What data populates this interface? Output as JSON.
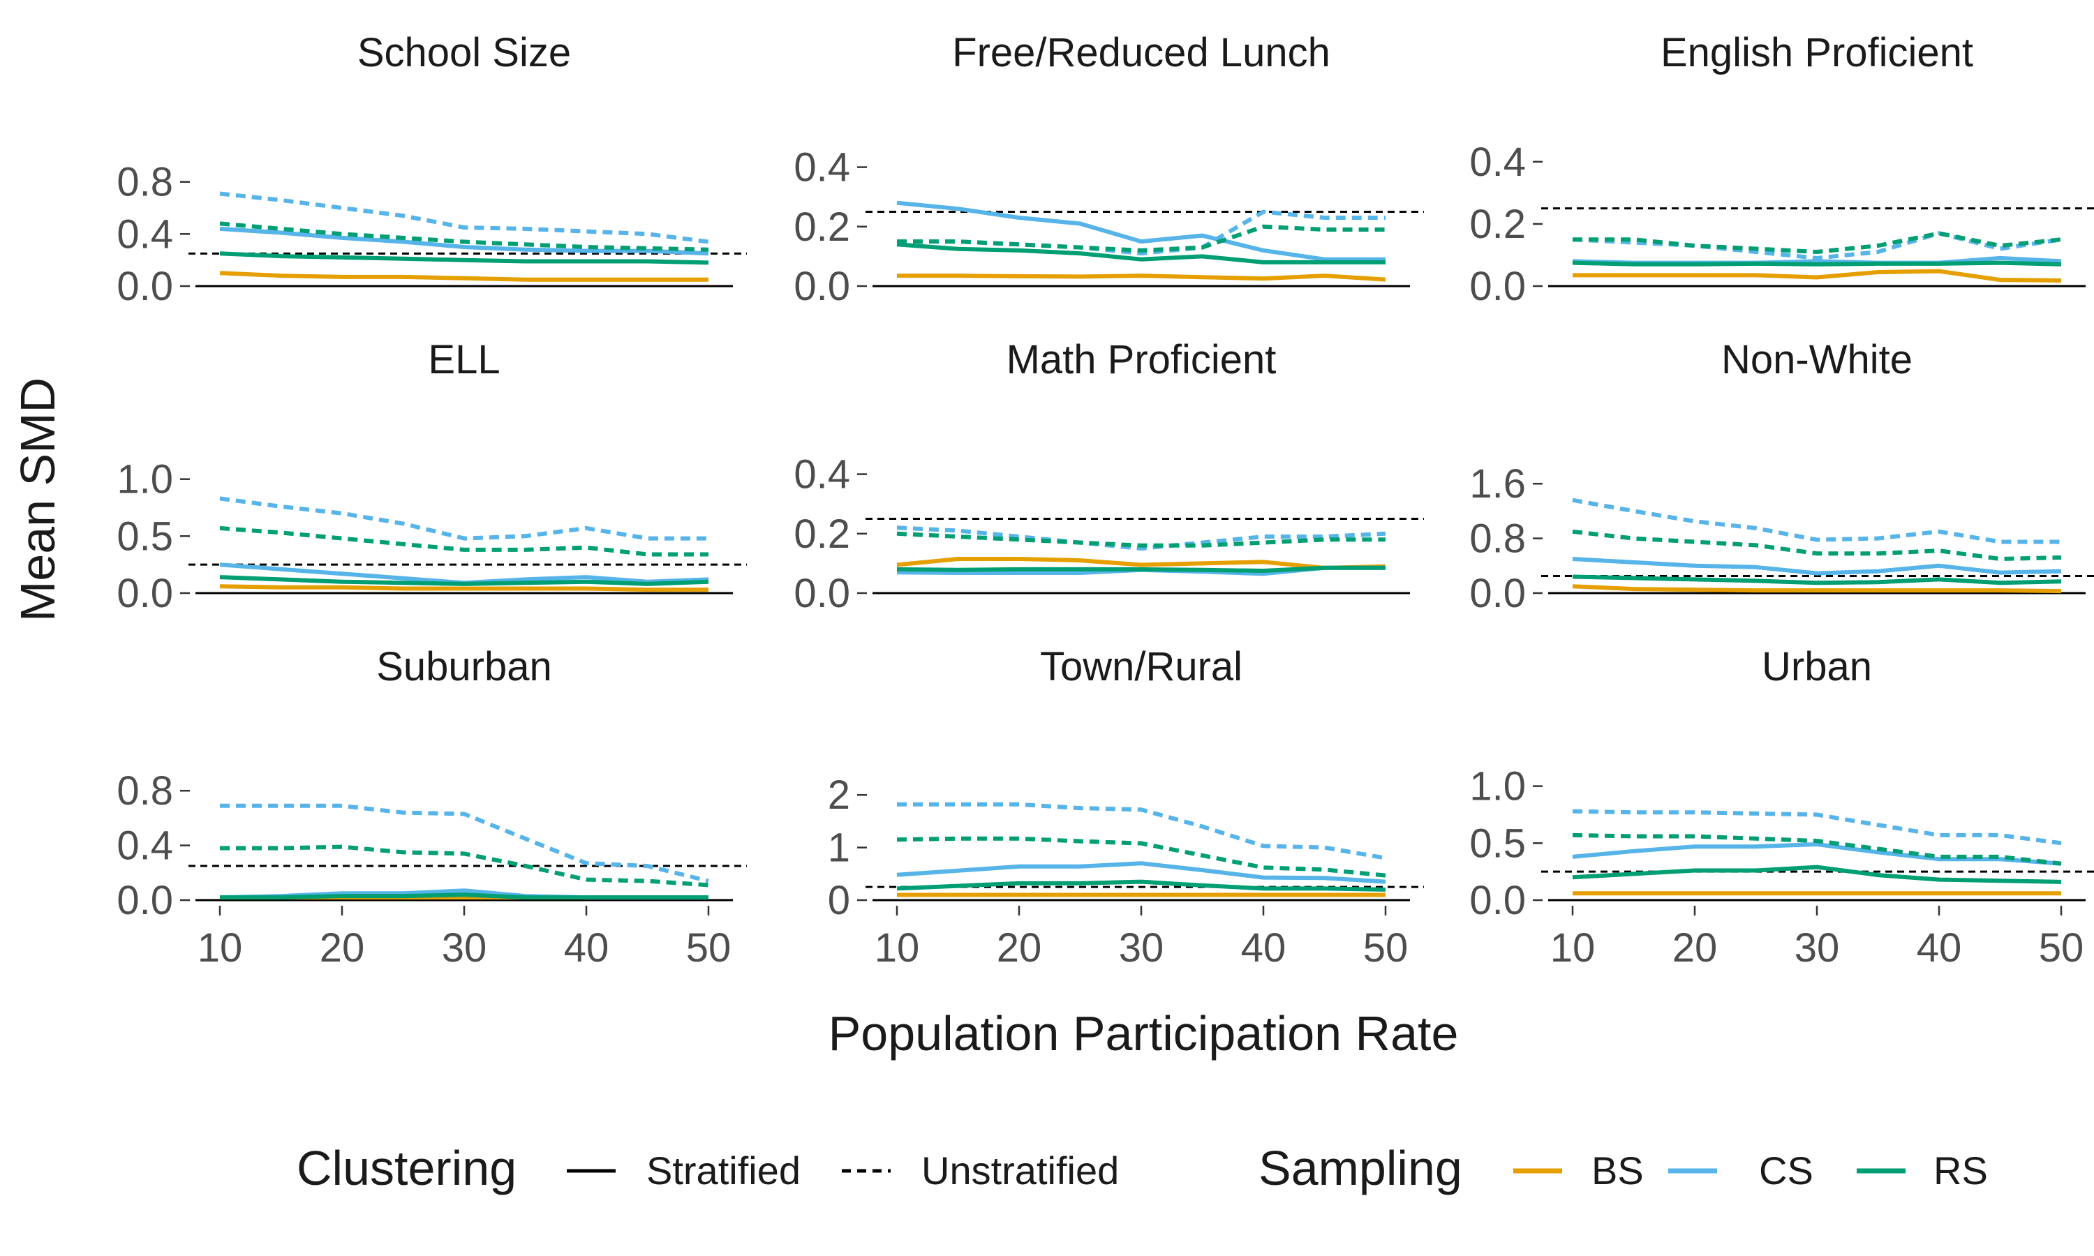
{
  "chart_data": {
    "type": "line",
    "ylabel": "Mean SMD",
    "xlabel": "Population Participation Rate",
    "x": [
      10,
      15,
      20,
      25,
      30,
      35,
      40,
      45,
      50
    ],
    "xticks": [
      10,
      20,
      30,
      40,
      50
    ],
    "xlim": [
      8,
      52
    ],
    "reference_line": 0.25,
    "colors": {
      "BS": "#E69F00",
      "CS": "#56B4E9",
      "RS": "#009E73",
      "ref": "#000000"
    },
    "legend": {
      "clustering_title": "Clustering",
      "stratified_label": "Stratified",
      "unstratified_label": "Unstratified",
      "sampling_title": "Sampling",
      "bs_label": "BS",
      "cs_label": "CS",
      "rs_label": "RS"
    },
    "panels": [
      {
        "title": "School Size",
        "ylim": [
          0,
          1.05
        ],
        "yticks": [
          "0.0",
          "0.4",
          "0.8"
        ],
        "series": [
          {
            "sampling": "BS",
            "clustering": "Stratified",
            "values": [
              0.1,
              0.08,
              0.07,
              0.07,
              0.06,
              0.05,
              0.05,
              0.05,
              0.05
            ]
          },
          {
            "sampling": "CS",
            "clustering": "Stratified",
            "values": [
              0.44,
              0.41,
              0.37,
              0.34,
              0.3,
              0.28,
              0.27,
              0.27,
              0.25
            ]
          },
          {
            "sampling": "RS",
            "clustering": "Stratified",
            "values": [
              0.25,
              0.23,
              0.22,
              0.21,
              0.2,
              0.19,
              0.19,
              0.19,
              0.18
            ]
          },
          {
            "sampling": "CS",
            "clustering": "Unstratified",
            "values": [
              0.71,
              0.66,
              0.6,
              0.54,
              0.45,
              0.44,
              0.42,
              0.4,
              0.34
            ]
          },
          {
            "sampling": "RS",
            "clustering": "Unstratified",
            "values": [
              0.48,
              0.44,
              0.4,
              0.37,
              0.34,
              0.32,
              0.3,
              0.29,
              0.28
            ]
          }
        ]
      },
      {
        "title": "Free/Reduced Lunch",
        "ylim": [
          0,
          0.46
        ],
        "yticks": [
          "0.0",
          "0.2",
          "0.4"
        ],
        "series": [
          {
            "sampling": "BS",
            "clustering": "Stratified",
            "values": [
              0.035,
              0.035,
              0.033,
              0.032,
              0.035,
              0.03,
              0.025,
              0.035,
              0.022
            ]
          },
          {
            "sampling": "CS",
            "clustering": "Stratified",
            "values": [
              0.28,
              0.26,
              0.23,
              0.21,
              0.15,
              0.17,
              0.12,
              0.09,
              0.09
            ]
          },
          {
            "sampling": "RS",
            "clustering": "Stratified",
            "values": [
              0.14,
              0.125,
              0.12,
              0.11,
              0.09,
              0.1,
              0.08,
              0.08,
              0.08
            ]
          },
          {
            "sampling": "CS",
            "clustering": "Unstratified",
            "values": [
              0.15,
              0.15,
              0.14,
              0.13,
              0.11,
              0.13,
              0.25,
              0.23,
              0.23
            ]
          },
          {
            "sampling": "RS",
            "clustering": "Unstratified",
            "values": [
              0.15,
              0.15,
              0.14,
              0.13,
              0.12,
              0.13,
              0.2,
              0.19,
              0.19
            ]
          }
        ]
      },
      {
        "title": "English Proficient",
        "ylim": [
          0,
          0.44
        ],
        "yticks": [
          "0.0",
          "0.2",
          "0.4"
        ],
        "series": [
          {
            "sampling": "BS",
            "clustering": "Stratified",
            "values": [
              0.035,
              0.035,
              0.035,
              0.035,
              0.028,
              0.045,
              0.048,
              0.02,
              0.018
            ]
          },
          {
            "sampling": "CS",
            "clustering": "Stratified",
            "values": [
              0.08,
              0.075,
              0.075,
              0.075,
              0.08,
              0.075,
              0.075,
              0.09,
              0.08
            ]
          },
          {
            "sampling": "RS",
            "clustering": "Stratified",
            "values": [
              0.075,
              0.07,
              0.07,
              0.072,
              0.07,
              0.072,
              0.072,
              0.075,
              0.07
            ]
          },
          {
            "sampling": "CS",
            "clustering": "Unstratified",
            "values": [
              0.15,
              0.14,
              0.13,
              0.11,
              0.09,
              0.11,
              0.17,
              0.12,
              0.15
            ]
          },
          {
            "sampling": "RS",
            "clustering": "Unstratified",
            "values": [
              0.15,
              0.15,
              0.13,
              0.12,
              0.11,
              0.13,
              0.17,
              0.13,
              0.15
            ]
          }
        ]
      },
      {
        "title": "ELL",
        "ylim": [
          0,
          1.2
        ],
        "yticks": [
          "0.0",
          "0.5",
          "1.0"
        ],
        "series": [
          {
            "sampling": "BS",
            "clustering": "Stratified",
            "values": [
              0.06,
              0.05,
              0.05,
              0.04,
              0.04,
              0.04,
              0.04,
              0.03,
              0.03
            ]
          },
          {
            "sampling": "CS",
            "clustering": "Stratified",
            "values": [
              0.25,
              0.21,
              0.17,
              0.13,
              0.09,
              0.12,
              0.14,
              0.1,
              0.12
            ]
          },
          {
            "sampling": "RS",
            "clustering": "Stratified",
            "values": [
              0.14,
              0.12,
              0.1,
              0.09,
              0.08,
              0.09,
              0.1,
              0.08,
              0.1
            ]
          },
          {
            "sampling": "CS",
            "clustering": "Unstratified",
            "values": [
              0.83,
              0.76,
              0.7,
              0.61,
              0.48,
              0.5,
              0.57,
              0.48,
              0.48
            ]
          },
          {
            "sampling": "RS",
            "clustering": "Unstratified",
            "values": [
              0.57,
              0.53,
              0.48,
              0.43,
              0.38,
              0.38,
              0.4,
              0.34,
              0.34
            ]
          }
        ]
      },
      {
        "title": "Math Proficient",
        "ylim": [
          0,
          0.46
        ],
        "yticks": [
          "0.0",
          "0.2",
          "0.4"
        ],
        "series": [
          {
            "sampling": "BS",
            "clustering": "Stratified",
            "values": [
              0.095,
              0.115,
              0.115,
              0.11,
              0.095,
              0.1,
              0.105,
              0.085,
              0.09
            ]
          },
          {
            "sampling": "CS",
            "clustering": "Stratified",
            "values": [
              0.07,
              0.068,
              0.068,
              0.068,
              0.078,
              0.072,
              0.065,
              0.085,
              0.085
            ]
          },
          {
            "sampling": "RS",
            "clustering": "Stratified",
            "values": [
              0.08,
              0.078,
              0.08,
              0.08,
              0.08,
              0.078,
              0.075,
              0.085,
              0.085
            ]
          },
          {
            "sampling": "CS",
            "clustering": "Unstratified",
            "values": [
              0.22,
              0.21,
              0.19,
              0.17,
              0.15,
              0.17,
              0.19,
              0.19,
              0.2
            ]
          },
          {
            "sampling": "RS",
            "clustering": "Unstratified",
            "values": [
              0.2,
              0.19,
              0.18,
              0.17,
              0.16,
              0.16,
              0.17,
              0.18,
              0.18
            ]
          }
        ]
      },
      {
        "title": "Non-White",
        "ylim": [
          0,
          2.0
        ],
        "yticks": [
          "0.0",
          "0.8",
          "1.6"
        ],
        "series": [
          {
            "sampling": "BS",
            "clustering": "Stratified",
            "values": [
              0.1,
              0.06,
              0.05,
              0.04,
              0.04,
              0.04,
              0.04,
              0.04,
              0.03
            ]
          },
          {
            "sampling": "CS",
            "clustering": "Stratified",
            "values": [
              0.5,
              0.45,
              0.4,
              0.38,
              0.29,
              0.32,
              0.4,
              0.3,
              0.32
            ]
          },
          {
            "sampling": "RS",
            "clustering": "Stratified",
            "values": [
              0.24,
              0.22,
              0.2,
              0.18,
              0.15,
              0.16,
              0.2,
              0.15,
              0.17
            ]
          },
          {
            "sampling": "CS",
            "clustering": "Unstratified",
            "values": [
              1.36,
              1.2,
              1.05,
              0.95,
              0.78,
              0.8,
              0.9,
              0.75,
              0.75
            ]
          },
          {
            "sampling": "RS",
            "clustering": "Unstratified",
            "values": [
              0.9,
              0.8,
              0.75,
              0.7,
              0.58,
              0.58,
              0.62,
              0.5,
              0.52
            ]
          }
        ]
      },
      {
        "title": "Suburban",
        "ylim": [
          0,
          1.0
        ],
        "yticks": [
          "0.0",
          "0.4",
          "0.8"
        ],
        "series": [
          {
            "sampling": "BS",
            "clustering": "Stratified",
            "values": [
              0.02,
              0.02,
              0.02,
              0.02,
              0.02,
              0.02,
              0.02,
              0.02,
              0.02
            ]
          },
          {
            "sampling": "CS",
            "clustering": "Stratified",
            "values": [
              0.02,
              0.03,
              0.05,
              0.05,
              0.07,
              0.03,
              0.02,
              0.02,
              0.02
            ]
          },
          {
            "sampling": "RS",
            "clustering": "Stratified",
            "values": [
              0.02,
              0.02,
              0.03,
              0.03,
              0.04,
              0.02,
              0.02,
              0.02,
              0.02
            ]
          },
          {
            "sampling": "CS",
            "clustering": "Unstratified",
            "values": [
              0.69,
              0.69,
              0.69,
              0.64,
              0.63,
              0.45,
              0.27,
              0.25,
              0.14
            ]
          },
          {
            "sampling": "RS",
            "clustering": "Unstratified",
            "values": [
              0.38,
              0.38,
              0.39,
              0.35,
              0.34,
              0.25,
              0.15,
              0.14,
              0.11
            ]
          }
        ]
      },
      {
        "title": "Town/Rural",
        "ylim": [
          0,
          2.6
        ],
        "yticks": [
          "0",
          "1",
          "2"
        ],
        "series": [
          {
            "sampling": "BS",
            "clustering": "Stratified",
            "values": [
              0.1,
              0.1,
              0.1,
              0.1,
              0.1,
              0.1,
              0.1,
              0.1,
              0.1
            ]
          },
          {
            "sampling": "CS",
            "clustering": "Stratified",
            "values": [
              0.48,
              0.56,
              0.64,
              0.64,
              0.7,
              0.57,
              0.43,
              0.42,
              0.35
            ]
          },
          {
            "sampling": "RS",
            "clustering": "Stratified",
            "values": [
              0.22,
              0.27,
              0.32,
              0.32,
              0.35,
              0.28,
              0.22,
              0.22,
              0.2
            ]
          },
          {
            "sampling": "CS",
            "clustering": "Unstratified",
            "values": [
              1.82,
              1.82,
              1.82,
              1.75,
              1.72,
              1.4,
              1.03,
              1.0,
              0.8
            ]
          },
          {
            "sampling": "RS",
            "clustering": "Unstratified",
            "values": [
              1.15,
              1.17,
              1.17,
              1.12,
              1.08,
              0.85,
              0.62,
              0.58,
              0.47
            ]
          }
        ]
      },
      {
        "title": "Urban",
        "ylim": [
          0,
          1.2
        ],
        "yticks": [
          "0.0",
          "0.5",
          "1.0"
        ],
        "series": [
          {
            "sampling": "BS",
            "clustering": "Stratified",
            "values": [
              0.06,
              0.06,
              0.06,
              0.06,
              0.06,
              0.06,
              0.06,
              0.06,
              0.06
            ]
          },
          {
            "sampling": "CS",
            "clustering": "Stratified",
            "values": [
              0.38,
              0.43,
              0.47,
              0.47,
              0.49,
              0.42,
              0.36,
              0.36,
              0.32
            ]
          },
          {
            "sampling": "RS",
            "clustering": "Stratified",
            "values": [
              0.2,
              0.23,
              0.26,
              0.26,
              0.29,
              0.22,
              0.18,
              0.17,
              0.16
            ]
          },
          {
            "sampling": "CS",
            "clustering": "Unstratified",
            "values": [
              0.78,
              0.77,
              0.77,
              0.76,
              0.75,
              0.66,
              0.57,
              0.57,
              0.5
            ]
          },
          {
            "sampling": "RS",
            "clustering": "Unstratified",
            "values": [
              0.57,
              0.56,
              0.56,
              0.54,
              0.52,
              0.45,
              0.38,
              0.38,
              0.32
            ]
          }
        ]
      }
    ]
  }
}
